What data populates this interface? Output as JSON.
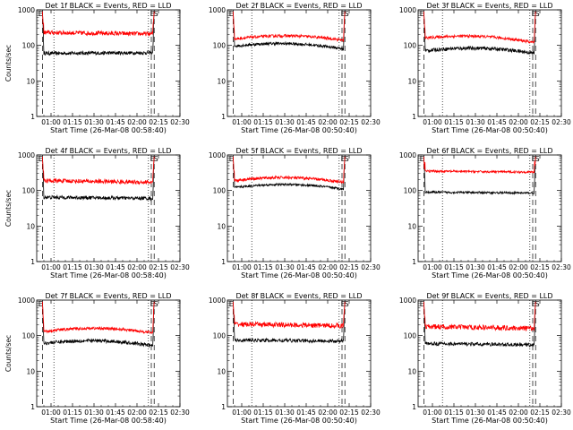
{
  "colors": {
    "events": "#000000",
    "lld": "#ff0000",
    "background": "#ffffff",
    "axes": "#000000"
  },
  "chart_data": [
    {
      "type": "line",
      "title": "Det 1f BLACK = Events, RED = LLD",
      "xlabel": "Start Time (26-Mar-08 00:58:40)",
      "ylabel": "Counts/sec",
      "yscale": "log",
      "ylim": [
        1,
        1000
      ],
      "xticks": [
        "01:00",
        "01:15",
        "01:30",
        "01:45",
        "02:00",
        "02:15",
        "02:30"
      ],
      "flags": [
        "E",
        "S"
      ],
      "grid": false,
      "series": [
        {
          "color": "#000000",
          "shape": "flat",
          "start": 60,
          "end": 62,
          "amp": 0.05
        },
        {
          "color": "#ff0000",
          "shape": "flat",
          "start": 230,
          "end": 210,
          "amp": 0.06
        }
      ]
    },
    {
      "type": "line",
      "title": "Det 2f BLACK = Events, RED = LLD",
      "xlabel": "Start Time (26-Mar-08 00:50:40)",
      "ylabel": "",
      "yscale": "log",
      "ylim": [
        1,
        1000
      ],
      "xticks": [
        "01:00",
        "01:15",
        "01:30",
        "01:45",
        "02:00",
        "02:15",
        "02:30"
      ],
      "flags": [
        "E",
        "S"
      ],
      "grid": false,
      "series": [
        {
          "color": "#000000",
          "shape": "hump",
          "start": 95,
          "end": 80,
          "amp": 0.04
        },
        {
          "color": "#ff0000",
          "shape": "hump",
          "start": 150,
          "end": 140,
          "amp": 0.04
        }
      ]
    },
    {
      "type": "line",
      "title": "Det 3f BLACK = Events, RED = LLD",
      "xlabel": "Start Time (26-Mar-08 00:50:40)",
      "ylabel": "",
      "yscale": "log",
      "ylim": [
        1,
        1000
      ],
      "xticks": [
        "01:00",
        "01:15",
        "01:30",
        "01:45",
        "02:00",
        "02:15",
        "02:30"
      ],
      "flags": [
        "E",
        "S"
      ],
      "grid": false,
      "series": [
        {
          "color": "#000000",
          "shape": "hump",
          "start": 70,
          "end": 60,
          "amp": 0.05
        },
        {
          "color": "#ff0000",
          "shape": "hump",
          "start": 160,
          "end": 120,
          "amp": 0.04
        }
      ]
    },
    {
      "type": "line",
      "title": "Det 4f BLACK = Events, RED = LLD",
      "xlabel": "Start Time (26-Mar-08 00:58:40)",
      "ylabel": "Counts/sec",
      "yscale": "log",
      "ylim": [
        1,
        1000
      ],
      "xticks": [
        "01:00",
        "01:15",
        "01:30",
        "01:45",
        "02:00",
        "02:15",
        "02:30"
      ],
      "flags": [
        "E",
        "S"
      ],
      "grid": false,
      "series": [
        {
          "color": "#000000",
          "shape": "flat",
          "start": 65,
          "end": 60,
          "amp": 0.05
        },
        {
          "color": "#ff0000",
          "shape": "flat",
          "start": 190,
          "end": 170,
          "amp": 0.06
        }
      ]
    },
    {
      "type": "line",
      "title": "Det 5f BLACK = Events, RED = LLD",
      "xlabel": "Start Time (26-Mar-08 00:50:40)",
      "ylabel": "",
      "yscale": "log",
      "ylim": [
        1,
        1000
      ],
      "xticks": [
        "01:00",
        "01:15",
        "01:30",
        "01:45",
        "02:00",
        "02:15",
        "02:30"
      ],
      "flags": [
        "E",
        "S"
      ],
      "grid": false,
      "series": [
        {
          "color": "#000000",
          "shape": "hump",
          "start": 120,
          "end": 110,
          "amp": 0.03
        },
        {
          "color": "#ff0000",
          "shape": "hump",
          "start": 190,
          "end": 170,
          "amp": 0.04
        }
      ]
    },
    {
      "type": "line",
      "title": "Det 6f BLACK = Events, RED = LLD",
      "xlabel": "Start Time (26-Mar-08 00:50:40)",
      "ylabel": "",
      "yscale": "log",
      "ylim": [
        1,
        1000
      ],
      "xticks": [
        "01:00",
        "01:15",
        "01:30",
        "01:45",
        "02:00",
        "02:15",
        "02:30"
      ],
      "flags": [
        "E",
        "S"
      ],
      "grid": false,
      "series": [
        {
          "color": "#000000",
          "shape": "flat",
          "start": 90,
          "end": 85,
          "amp": 0.03
        },
        {
          "color": "#ff0000",
          "shape": "flat",
          "start": 350,
          "end": 330,
          "amp": 0.03
        }
      ]
    },
    {
      "type": "line",
      "title": "Det 7f BLACK = Events, RED = LLD",
      "xlabel": "Start Time (26-Mar-08 00:58:40)",
      "ylabel": "Counts/sec",
      "yscale": "log",
      "ylim": [
        1,
        1000
      ],
      "xticks": [
        "01:00",
        "01:15",
        "01:30",
        "01:45",
        "02:00",
        "02:15",
        "02:30"
      ],
      "flags": [
        "E",
        "S"
      ],
      "grid": false,
      "series": [
        {
          "color": "#000000",
          "shape": "hump",
          "start": 60,
          "end": 52,
          "amp": 0.05
        },
        {
          "color": "#ff0000",
          "shape": "hump",
          "start": 130,
          "end": 120,
          "amp": 0.04
        }
      ]
    },
    {
      "type": "line",
      "title": "Det 8f BLACK = Events, RED = LLD",
      "xlabel": "Start Time (26-Mar-08 00:50:40)",
      "ylabel": "",
      "yscale": "log",
      "ylim": [
        1,
        1000
      ],
      "xticks": [
        "01:00",
        "01:15",
        "01:30",
        "01:45",
        "02:00",
        "02:15",
        "02:30"
      ],
      "flags": [
        "E",
        "S"
      ],
      "grid": false,
      "series": [
        {
          "color": "#000000",
          "shape": "flat",
          "start": 75,
          "end": 70,
          "amp": 0.05
        },
        {
          "color": "#ff0000",
          "shape": "flat",
          "start": 210,
          "end": 190,
          "amp": 0.07
        }
      ]
    },
    {
      "type": "line",
      "title": "Det 9f BLACK = Events, RED = LLD",
      "xlabel": "Start Time (26-Mar-08 00:50:40)",
      "ylabel": "",
      "yscale": "log",
      "ylim": [
        1,
        1000
      ],
      "xticks": [
        "01:00",
        "01:15",
        "01:30",
        "01:45",
        "02:00",
        "02:15",
        "02:30"
      ],
      "flags": [
        "E",
        "S"
      ],
      "grid": false,
      "series": [
        {
          "color": "#000000",
          "shape": "flat",
          "start": 60,
          "end": 55,
          "amp": 0.05
        },
        {
          "color": "#ff0000",
          "shape": "flat",
          "start": 180,
          "end": 160,
          "amp": 0.07
        }
      ]
    }
  ]
}
